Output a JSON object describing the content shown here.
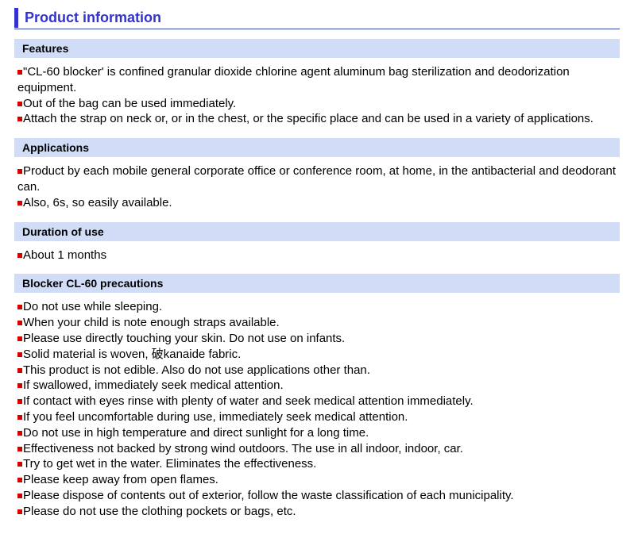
{
  "page_title": "Product information",
  "sections": [
    {
      "header": "Features",
      "items": [
        "\"CL-60 blocker' is confined granular dioxide chlorine agent aluminum bag sterilization and deodorization equipment.",
        "Out of the bag can be used immediately.",
        "Attach the strap on neck or, or in the chest, or the specific place and can be used in a variety of applications."
      ]
    },
    {
      "header": "Applications",
      "items": [
        "Product by each mobile general corporate office or conference room, at home, in the antibacterial and deodorant can.",
        "Also, 6s, so easily available."
      ]
    },
    {
      "header": "Duration of use",
      "items": [
        "About 1 months"
      ]
    },
    {
      "header": "Blocker CL-60 precautions",
      "items": [
        "Do not use while sleeping.",
        "When your child is note enough straps available.",
        "Please use directly touching your skin. Do not use on infants.",
        "Solid material is woven, 破kanaide fabric.",
        "This product is not edible. Also do not use applications other than.",
        "If swallowed, immediately seek medical attention.",
        "If contact with eyes rinse with plenty of water and seek medical attention immediately.",
        "If you feel uncomfortable during use, immediately seek medical attention.",
        "Do not use in high temperature and direct sunlight for a long time.",
        "Effectiveness not backed by strong wind outdoors. The use in all indoor, indoor, car.",
        "Try to get wet in the water. Eliminates the effectiveness.",
        "Please keep away from open flames.",
        "Please dispose of contents out of exterior, follow the waste classification of each municipality.",
        "Please do not use the clothing pockets or bags, etc."
      ]
    }
  ],
  "colors": {
    "title_color": "#3333cc",
    "section_bg": "#d1dcf6",
    "bullet_color": "#d40000",
    "text_color": "#000000"
  }
}
